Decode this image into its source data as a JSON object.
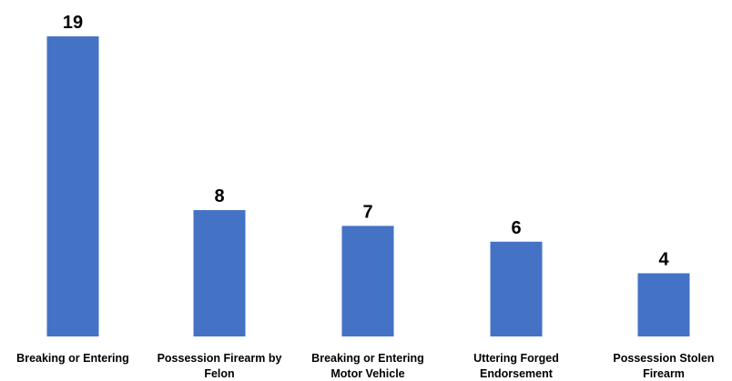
{
  "chart_data": {
    "type": "bar",
    "title": "",
    "categories": [
      "Breaking or Entering",
      "Possession Firearm by Felon",
      "Breaking or Entering Motor Vehicle",
      "Uttering Forged Endorsement",
      "Possession Stolen Firearm"
    ],
    "values": [
      19,
      8,
      7,
      6,
      4
    ],
    "data_labels": [
      "19",
      "8",
      "7",
      "6",
      "4"
    ],
    "ylim": [
      0,
      19
    ],
    "grid": false,
    "legend": "none",
    "bar_color": "#4472C4",
    "xlabel": "",
    "ylabel": ""
  }
}
